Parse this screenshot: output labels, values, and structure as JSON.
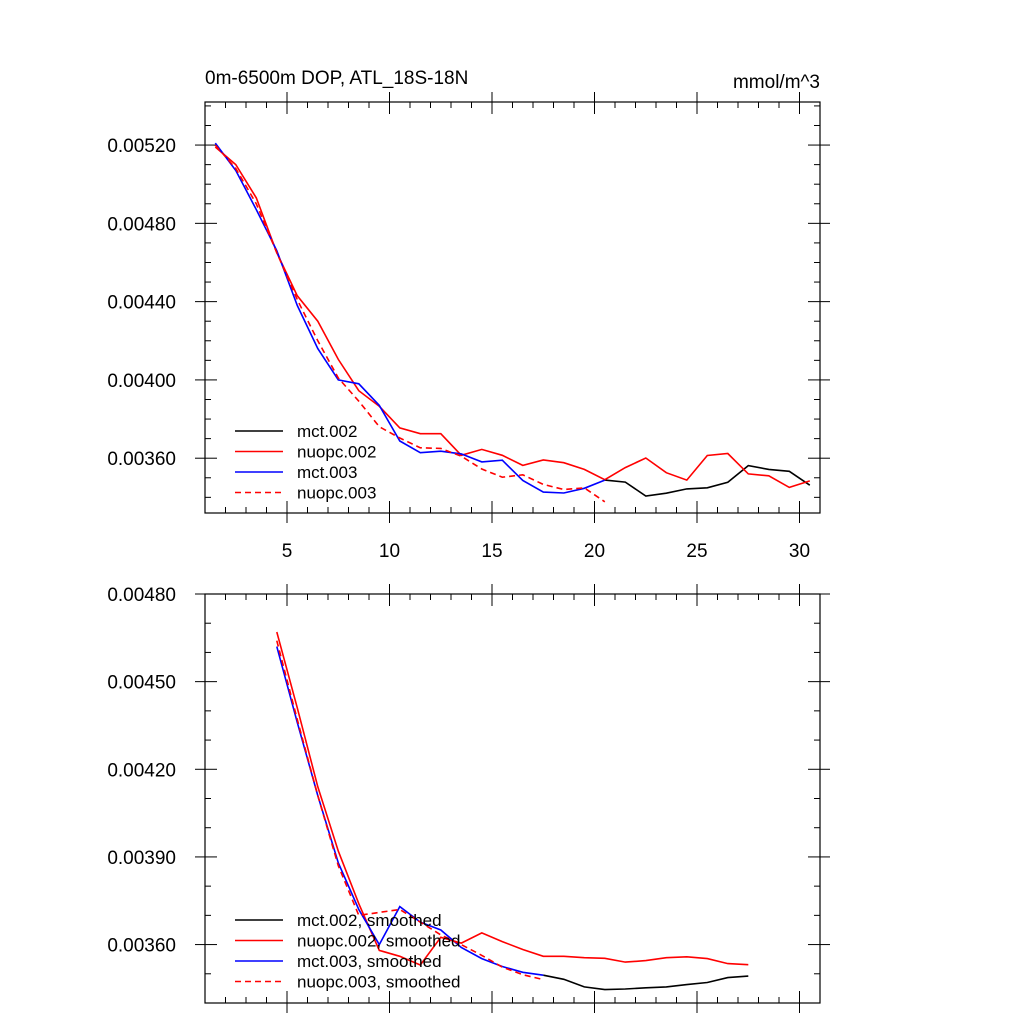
{
  "chart_data": [
    {
      "type": "line",
      "title": "0m-6500m DOP, ATL_18S-18N",
      "units": "mmol/m^3",
      "xlabel": "",
      "ylabel": "",
      "xlim": [
        1,
        31
      ],
      "ylim": [
        0.00332,
        0.00542
      ],
      "xticks": [
        5,
        10,
        15,
        20,
        25,
        30
      ],
      "yticks": [
        0.0052,
        0.0048,
        0.0044,
        0.004,
        0.0036
      ],
      "ytick_labels": [
        "0.00520",
        "0.00480",
        "0.00440",
        "0.00400",
        "0.00360"
      ],
      "legend_position": "bottom-left",
      "series": [
        {
          "name": "mct.002",
          "color": "#000000",
          "dash": "solid",
          "x": [
            20.5,
            21.5,
            22.5,
            23.5,
            24.5,
            25.5,
            26.5,
            27.5,
            28.5,
            29.5,
            30.5
          ],
          "y": [
            0.003488,
            0.003478,
            0.003407,
            0.003421,
            0.003443,
            0.003449,
            0.003477,
            0.003562,
            0.003543,
            0.003533,
            0.003462
          ]
        },
        {
          "name": "nuopc.002",
          "color": "#ff0000",
          "dash": "solid",
          "x": [
            1.5,
            2.5,
            3.5,
            4.5,
            5.5,
            6.5,
            7.5,
            8.5,
            9.5,
            10.5,
            11.5,
            12.5,
            13.5,
            14.5,
            15.5,
            16.5,
            17.5,
            18.5,
            19.5,
            20.5,
            21.5,
            22.5,
            23.5,
            24.5,
            25.5,
            26.5,
            27.5,
            28.5,
            29.5,
            30.5
          ],
          "y": [
            0.00519,
            0.0051,
            0.00493,
            0.00465,
            0.00443,
            0.0043,
            0.004105,
            0.003945,
            0.003865,
            0.003755,
            0.003725,
            0.003725,
            0.003615,
            0.003645,
            0.003615,
            0.003563,
            0.003591,
            0.003577,
            0.003543,
            0.00349,
            0.003552,
            0.003601,
            0.003526,
            0.003488,
            0.003614,
            0.003624,
            0.00352,
            0.00351,
            0.003451,
            0.003484
          ]
        },
        {
          "name": "mct.003",
          "color": "#0000ff",
          "dash": "solid",
          "x": [
            1.5,
            2.5,
            3.5,
            4.5,
            5.5,
            6.5,
            7.5,
            8.5,
            9.5,
            10.5,
            11.5,
            12.5,
            13.5,
            14.5,
            15.5,
            16.5,
            17.5,
            18.5,
            19.5,
            20.5
          ],
          "y": [
            0.00521,
            0.00507,
            0.00487,
            0.00466,
            0.00438,
            0.00416,
            0.004,
            0.00398,
            0.00387,
            0.003688,
            0.003628,
            0.003636,
            0.003622,
            0.003581,
            0.00359,
            0.003486,
            0.003427,
            0.003422,
            0.003446,
            0.003488
          ]
        },
        {
          "name": "nuopc.003",
          "color": "#ff0000",
          "dash": "dashed",
          "x": [
            1.5,
            2.5,
            3.5,
            4.5,
            5.5,
            6.5,
            7.5,
            8.5,
            9.5,
            10.5,
            11.5,
            12.5,
            13.5,
            14.5,
            15.5,
            16.5,
            17.5,
            18.5,
            19.5,
            20.5
          ],
          "y": [
            0.0052,
            0.00508,
            0.0049,
            0.00465,
            0.00441,
            0.0042,
            0.00401,
            0.003891,
            0.003761,
            0.003703,
            0.003653,
            0.00365,
            0.00361,
            0.003545,
            0.003503,
            0.003515,
            0.003466,
            0.00344,
            0.003448,
            0.003377
          ]
        }
      ]
    },
    {
      "type": "line",
      "title": "",
      "xlabel": "",
      "ylabel": "",
      "xlim": [
        1,
        31
      ],
      "ylim": [
        0.0034,
        0.0048
      ],
      "xticks": [
        5,
        10,
        15,
        20,
        25,
        30
      ],
      "yticks": [
        0.0048,
        0.0045,
        0.0042,
        0.0039,
        0.0036
      ],
      "ytick_labels": [
        "0.00480",
        "0.00450",
        "0.00420",
        "0.00390",
        "0.00360"
      ],
      "legend_position": "bottom-left",
      "series": [
        {
          "name": "mct.002, smoothed",
          "color": "#000000",
          "dash": "solid",
          "x": [
            17.5,
            18.5,
            19.5,
            20.5,
            21.5,
            22.5,
            23.5,
            24.5,
            25.5,
            26.5,
            27.5
          ],
          "y": [
            0.003495,
            0.003481,
            0.003455,
            0.003446,
            0.003448,
            0.003452,
            0.003455,
            0.003463,
            0.00347,
            0.003487,
            0.003492
          ]
        },
        {
          "name": "nuopc.002, smoothed",
          "color": "#ff0000",
          "dash": "solid",
          "x": [
            4.5,
            5.5,
            6.5,
            7.5,
            8.5,
            9.5,
            10.5,
            11.5,
            12.5,
            13.5,
            14.5,
            15.5,
            16.5,
            17.5,
            18.5,
            19.5,
            20.5,
            21.5,
            22.5,
            23.5,
            24.5,
            25.5,
            26.5,
            27.5
          ],
          "y": [
            0.00467,
            0.00441,
            0.00414,
            0.00392,
            0.00374,
            0.00358,
            0.00356,
            0.00353,
            0.003625,
            0.003605,
            0.00364,
            0.00361,
            0.003583,
            0.00356,
            0.00356,
            0.003555,
            0.003553,
            0.00354,
            0.003545,
            0.003555,
            0.003558,
            0.003552,
            0.003535,
            0.003531
          ]
        },
        {
          "name": "mct.003, smoothed",
          "color": "#0000ff",
          "dash": "solid",
          "x": [
            4.5,
            5.5,
            6.5,
            7.5,
            8.5,
            9.5,
            10.5,
            11.5,
            12.5,
            13.5,
            14.5,
            15.5,
            16.5,
            17.5
          ],
          "y": [
            0.00462,
            0.00436,
            0.00411,
            0.00388,
            0.00372,
            0.0036,
            0.00373,
            0.003677,
            0.00365,
            0.00359,
            0.003552,
            0.003525,
            0.003505,
            0.003495
          ]
        },
        {
          "name": "nuopc.003, smoothed",
          "color": "#ff0000",
          "dash": "dashed",
          "x": [
            4.5,
            5.5,
            6.5,
            7.5,
            8.5,
            9.5,
            10.5,
            11.5,
            12.5,
            13.5,
            14.5,
            15.5,
            16.5,
            17.5
          ],
          "y": [
            0.00464,
            0.00437,
            0.00411,
            0.00387,
            0.0037,
            0.00371,
            0.00372,
            0.003677,
            0.003633,
            0.0036,
            0.003563,
            0.003523,
            0.003497,
            0.00348
          ]
        }
      ]
    }
  ]
}
